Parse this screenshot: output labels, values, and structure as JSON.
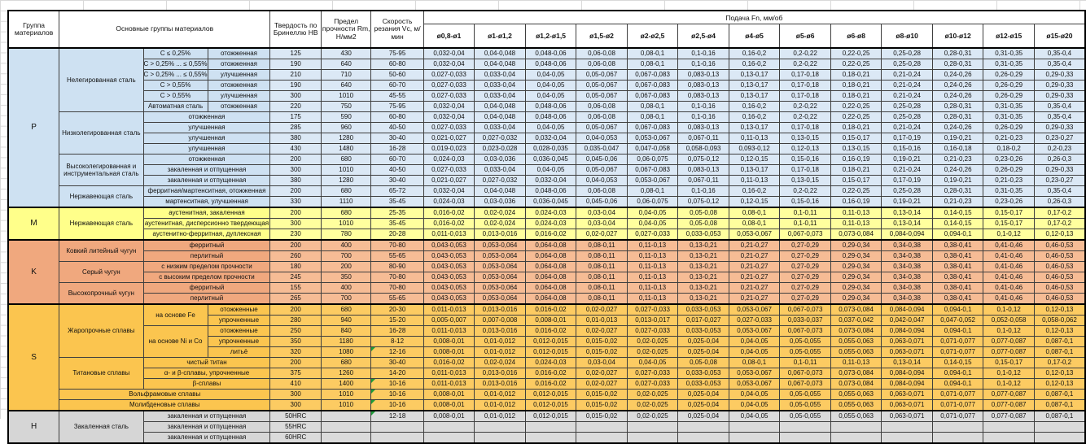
{
  "sheet": {
    "header": {
      "group": "Группа материалов",
      "main": "Основные группы материалов",
      "hardness": "Твердость по Бринеллю НВ",
      "strength": "Предел прочности Rm, Н/мм2",
      "speed": "Скорость резания Vc, м/мин",
      "feed_title": "Подача Fn, мм/об",
      "diameters": [
        "ø0,8-ø1",
        "ø1-ø1,2",
        "ø1,2-ø1,5",
        "ø1,5-ø2",
        "ø2-ø2,5",
        "ø2,5-ø4",
        "ø4-ø5",
        "ø5-ø6",
        "ø6-ø8",
        "ø8-ø10",
        "ø10-ø12",
        "ø12-ø15",
        "ø15-ø20"
      ]
    },
    "section_colors": {
      "P": {
        "left": "#CEE1F2",
        "data": "#DBE8F5"
      },
      "M": {
        "left": "#FFFF8A",
        "data": "#FFFF9E"
      },
      "K": {
        "left": "#F0A87E",
        "data": "#F6BC95"
      },
      "S": {
        "left": "#FBC54F",
        "data": "#FCCB62"
      },
      "H": {
        "left": "#D6D6D6",
        "data": "#DBDBDB"
      }
    },
    "comment_indicator_color": "#1f9d3a",
    "feed_sets": {
      "A": [
        "0,032-0,04",
        "0,04-0,048",
        "0,048-0,06",
        "0,06-0,08",
        "0,08-0,1",
        "0,1-0,16",
        "0,16-0,2",
        "0,2-0,22",
        "0,22-0,25",
        "0,25-0,28",
        "0,28-0,31",
        "0,31-0,35",
        "0,35-0,4"
      ],
      "B": [
        "0,027-0,033",
        "0,033-0,04",
        "0,04-0,05",
        "0,05-0,067",
        "0,067-0,083",
        "0,083-0,13",
        "0,13-0,17",
        "0,17-0,18",
        "0,18-0,21",
        "0,21-0,24",
        "0,24-0,26",
        "0,26-0,29",
        "0,29-0,33"
      ],
      "C": [
        "0,021-0,027",
        "0,027-0,032",
        "0,032-0,04",
        "0,04-0,053",
        "0,053-0,067",
        "0,067-0,11",
        "0,11-0,13",
        "0,13-0,15",
        "0,15-0,17",
        "0,17-0,19",
        "0,19-0,21",
        "0,21-0,23",
        "0,23-0,27"
      ],
      "D": [
        "0,019-0,023",
        "0,023-0,028",
        "0,028-0,035",
        "0,035-0,047",
        "0,047-0,058",
        "0,058-0,093",
        "0,093-0,12",
        "0,12-0,13",
        "0,13-0,15",
        "0,15-0,16",
        "0,16-0,18",
        "0,18-0,2",
        "0,2-0,23"
      ],
      "E": [
        "0,024-0,03",
        "0,03-0,036",
        "0,036-0,045",
        "0,045-0,06",
        "0,06-0,075",
        "0,075-0,12",
        "0,12-0,15",
        "0,15-0,16",
        "0,16-0,19",
        "0,19-0,21",
        "0,21-0,23",
        "0,23-0,26",
        "0,26-0,3"
      ],
      "F": [
        "0,016-0,02",
        "0,02-0,024",
        "0,024-0,03",
        "0,03-0,04",
        "0,04-0,05",
        "0,05-0,08",
        "0,08-0,1",
        "0,1-0,11",
        "0,11-0,13",
        "0,13-0,14",
        "0,14-0,15",
        "0,15-0,17",
        "0,17-0,2"
      ],
      "G": [
        "0,011-0,013",
        "0,013-0,016",
        "0,016-0,02",
        "0,02-0,027",
        "0,027-0,033",
        "0,033-0,053",
        "0,053-0,067",
        "0,067-0,073",
        "0,073-0,084",
        "0,084-0,094",
        "0,094-0,1",
        "0,1-0,12",
        "0,12-0,13"
      ],
      "H": [
        "0,043-0,053",
        "0,053-0,064",
        "0,064-0,08",
        "0,08-0,11",
        "0,11-0,13",
        "0,13-0,21",
        "0,21-0,27",
        "0,27-0,29",
        "0,29-0,34",
        "0,34-0,38",
        "0,38-0,41",
        "0,41-0,46",
        "0,46-0,53"
      ],
      "I": [
        "0,005-0,007",
        "0,007-0,008",
        "0,008-0,01",
        "0,01-0,013",
        "0,013-0,017",
        "0,017-0,027",
        "0,027-0,033",
        "0,033-0,037",
        "0,037-0,042",
        "0,042-0,047",
        "0,047-0,052",
        "0,052-0,058",
        "0,058-0,062"
      ],
      "J": [
        "0,008-0,01",
        "0,01-0,012",
        "0,012-0,015",
        "0,015-0,02",
        "0,02-0,025",
        "0,025-0,04",
        "0,04-0,05",
        "0,05-0,055",
        "0,055-0,063",
        "0,063-0,071",
        "0,071-0,077",
        "0,077-0,087",
        "0,087-0,1"
      ],
      "EMPTY": [
        "",
        "",
        "",
        "",
        "",
        "",
        "",
        "",
        "",
        "",
        "",
        "",
        ""
      ]
    },
    "rows": [
      {
        "s": "P",
        "first": true,
        "left": [
          {
            "t": "P",
            "rs": 15,
            "n": "group-cell"
          },
          {
            "t": "Нелегированная сталь",
            "rs": 6,
            "n": "material-cell"
          },
          {
            "t": "С ≤ 0,25%",
            "n": "subgroup-cell"
          },
          {
            "t": "отожженная",
            "n": "condition-cell"
          }
        ],
        "hb": "125",
        "rm": "430",
        "vc": "75-95",
        "feed": "A"
      },
      {
        "s": "P",
        "left": [
          {
            "t": "С > 0,25% ... ≤ 0,55%",
            "n": "subgroup-cell"
          },
          {
            "t": "отожженная",
            "n": "condition-cell"
          }
        ],
        "hb": "190",
        "rm": "640",
        "vc": "60-80",
        "feed": "A"
      },
      {
        "s": "P",
        "left": [
          {
            "t": "С > 0,25% ... ≤ 0,55%",
            "n": "subgroup-cell"
          },
          {
            "t": "улучшенная",
            "n": "condition-cell"
          }
        ],
        "hb": "210",
        "rm": "710",
        "vc": "50-60",
        "feed": "B"
      },
      {
        "s": "P",
        "left": [
          {
            "t": "С > 0,55%",
            "n": "subgroup-cell"
          },
          {
            "t": "отожженная",
            "n": "condition-cell"
          }
        ],
        "hb": "190",
        "rm": "640",
        "vc": "60-70",
        "feed": "B"
      },
      {
        "s": "P",
        "left": [
          {
            "t": "С > 0,55%",
            "n": "subgroup-cell"
          },
          {
            "t": "улучшенная",
            "n": "condition-cell"
          }
        ],
        "hb": "300",
        "rm": "1010",
        "vc": "45-55",
        "feed": "B"
      },
      {
        "s": "P",
        "left": [
          {
            "t": "Автоматная сталь",
            "n": "subgroup-cell"
          },
          {
            "t": "отожженная",
            "n": "condition-cell"
          }
        ],
        "hb": "220",
        "rm": "750",
        "vc": "75-95",
        "feed": "A"
      },
      {
        "s": "P",
        "left": [
          {
            "t": "Низколегированная сталь",
            "rs": 4,
            "n": "material-cell"
          },
          {
            "t": "отожженная",
            "cs": 2,
            "n": "condition-cell"
          }
        ],
        "hb": "175",
        "rm": "590",
        "vc": "60-80",
        "feed": "A"
      },
      {
        "s": "P",
        "left": [
          {
            "t": "улучшенная",
            "cs": 2,
            "n": "condition-cell"
          }
        ],
        "hb": "285",
        "rm": "960",
        "vc": "40-50",
        "feed": "B"
      },
      {
        "s": "P",
        "left": [
          {
            "t": "улучшенная",
            "cs": 2,
            "n": "condition-cell"
          }
        ],
        "hb": "380",
        "rm": "1280",
        "vc": "30-40",
        "feed": "C"
      },
      {
        "s": "P",
        "left": [
          {
            "t": "улучшенная",
            "cs": 2,
            "n": "condition-cell"
          }
        ],
        "hb": "430",
        "rm": "1480",
        "vc": "16-28",
        "feed": "D"
      },
      {
        "s": "P",
        "left": [
          {
            "t": "Высоколегированная и инструментальная сталь",
            "rs": 3,
            "n": "material-cell"
          },
          {
            "t": "отожженная",
            "cs": 2,
            "n": "condition-cell"
          }
        ],
        "hb": "200",
        "rm": "680",
        "vc": "60-70",
        "feed": "E"
      },
      {
        "s": "P",
        "left": [
          {
            "t": "закаленная и отпущенная",
            "cs": 2,
            "n": "condition-cell"
          }
        ],
        "hb": "300",
        "rm": "1010",
        "vc": "40-50",
        "feed": "B"
      },
      {
        "s": "P",
        "left": [
          {
            "t": "закаленная и отпущенная",
            "cs": 2,
            "n": "condition-cell"
          }
        ],
        "hb": "380",
        "rm": "1280",
        "vc": "30-40",
        "feed": "C"
      },
      {
        "s": "P",
        "left": [
          {
            "t": "Нержавеющая сталь",
            "rs": 2,
            "n": "material-cell"
          },
          {
            "t": "ферритная/мартенситная, отожженная",
            "cs": 2,
            "n": "condition-cell"
          }
        ],
        "hb": "200",
        "rm": "680",
        "vc": "65-72",
        "feed": "A"
      },
      {
        "s": "P",
        "left": [
          {
            "t": "мартенситная, улучшенная",
            "cs": 2,
            "n": "condition-cell"
          }
        ],
        "hb": "330",
        "rm": "1110",
        "vc": "35-45",
        "feed": "E"
      },
      {
        "s": "M",
        "first": true,
        "left": [
          {
            "t": "M",
            "rs": 3,
            "n": "group-cell"
          },
          {
            "t": "Нержавеющая сталь",
            "rs": 3,
            "n": "material-cell"
          },
          {
            "t": "аустенитная, закаленная",
            "cs": 2,
            "n": "condition-cell"
          }
        ],
        "hb": "200",
        "rm": "680",
        "vc": "25-35",
        "feed": "F"
      },
      {
        "s": "M",
        "left": [
          {
            "t": "аустенитная, дисперсионно твердеющая",
            "cs": 2,
            "n": "condition-cell"
          }
        ],
        "hb": "300",
        "rm": "1010",
        "vc": "35-45",
        "feed": "F"
      },
      {
        "s": "M",
        "left": [
          {
            "t": "аустенитно-ферритная, дуплексная",
            "cs": 2,
            "n": "condition-cell"
          }
        ],
        "hb": "230",
        "rm": "780",
        "vc": "20-28",
        "feed": "G"
      },
      {
        "s": "K",
        "first": true,
        "left": [
          {
            "t": "K",
            "rs": 6,
            "n": "group-cell"
          },
          {
            "t": "Ковкий литейный чугун",
            "rs": 2,
            "n": "material-cell"
          },
          {
            "t": "ферритный",
            "cs": 2,
            "n": "condition-cell"
          }
        ],
        "hb": "200",
        "rm": "400",
        "vc": "70-80",
        "feed": "H"
      },
      {
        "s": "K",
        "left": [
          {
            "t": "перлитный",
            "cs": 2,
            "n": "condition-cell"
          }
        ],
        "hb": "260",
        "rm": "700",
        "vc": "55-65",
        "feed": "H"
      },
      {
        "s": "K",
        "left": [
          {
            "t": "Серый чугун",
            "rs": 2,
            "n": "material-cell"
          },
          {
            "t": "с низким пределом прочности",
            "cs": 2,
            "n": "condition-cell"
          }
        ],
        "hb": "180",
        "rm": "200",
        "vc": "80-90",
        "feed": "H"
      },
      {
        "s": "K",
        "left": [
          {
            "t": "с высоким пределом прочности",
            "cs": 2,
            "n": "condition-cell"
          }
        ],
        "hb": "245",
        "rm": "350",
        "vc": "70-80",
        "feed": "H"
      },
      {
        "s": "K",
        "left": [
          {
            "t": "Высокопрочный чугун",
            "rs": 2,
            "n": "material-cell"
          },
          {
            "t": "ферритный",
            "cs": 2,
            "n": "condition-cell"
          }
        ],
        "hb": "155",
        "rm": "400",
        "vc": "70-80",
        "feed": "H"
      },
      {
        "s": "K",
        "left": [
          {
            "t": "перлитный",
            "cs": 2,
            "n": "condition-cell"
          }
        ],
        "hb": "265",
        "rm": "700",
        "vc": "55-65",
        "feed": "H"
      },
      {
        "s": "S",
        "first": true,
        "left": [
          {
            "t": "S",
            "rs": 10,
            "n": "group-cell"
          },
          {
            "t": "Жаропрочные сплавы",
            "rs": 5,
            "n": "material-cell"
          },
          {
            "t": "на основе Fe",
            "rs": 2,
            "n": "subgroup-cell"
          },
          {
            "t": "отожженные",
            "n": "condition-cell"
          }
        ],
        "hb": "200",
        "rm": "680",
        "vc": "20-30",
        "feed": "G"
      },
      {
        "s": "S",
        "left": [
          {
            "t": "упрочненные",
            "n": "condition-cell"
          }
        ],
        "hb": "280",
        "rm": "940",
        "vc": "15-20",
        "feed": "I"
      },
      {
        "s": "S",
        "left": [
          {
            "t": "на основе Ni и Co",
            "rs": 3,
            "n": "subgroup-cell"
          },
          {
            "t": "отожженные",
            "n": "condition-cell"
          }
        ],
        "hb": "250",
        "rm": "840",
        "vc": "16-28",
        "feed": "G"
      },
      {
        "s": "S",
        "left": [
          {
            "t": "упрочненные",
            "n": "condition-cell"
          }
        ],
        "hb": "350",
        "rm": "1180",
        "vc": "8-12",
        "feed": "J"
      },
      {
        "s": "S",
        "left": [
          {
            "t": "литьё",
            "n": "condition-cell"
          }
        ],
        "hb": "320",
        "rm": "1080",
        "vc": "12-16",
        "cm": true,
        "feed": "J"
      },
      {
        "s": "S",
        "left": [
          {
            "t": "Титановые сплавы",
            "rs": 3,
            "n": "material-cell"
          },
          {
            "t": "чистый титан",
            "cs": 2,
            "n": "condition-cell"
          }
        ],
        "hb": "200",
        "rm": "680",
        "vc": "30-40",
        "feed": "F"
      },
      {
        "s": "S",
        "left": [
          {
            "t": "α- и β-сплавы, упрочненные",
            "cs": 2,
            "n": "condition-cell"
          }
        ],
        "hb": "375",
        "rm": "1260",
        "vc": "14-20",
        "feed": "G"
      },
      {
        "s": "S",
        "left": [
          {
            "t": "β-сплавы",
            "cs": 2,
            "n": "condition-cell"
          }
        ],
        "hb": "410",
        "rm": "1400",
        "vc": "10-16",
        "cm": true,
        "feed": "G"
      },
      {
        "s": "S",
        "left": [
          {
            "t": "Вольфрамовые сплавы",
            "cs": 3,
            "n": "material-cell"
          }
        ],
        "hb": "300",
        "rm": "1010",
        "vc": "10-16",
        "cm": true,
        "feed": "J"
      },
      {
        "s": "S",
        "left": [
          {
            "t": "Молибденовые сплавы",
            "cs": 3,
            "n": "material-cell"
          }
        ],
        "hb": "300",
        "rm": "1010",
        "vc": "10-16",
        "cm": true,
        "feed": "J"
      },
      {
        "s": "H",
        "first": true,
        "left": [
          {
            "t": "H",
            "rs": 3,
            "n": "group-cell"
          },
          {
            "t": "Закаленная сталь",
            "rs": 3,
            "n": "material-cell"
          },
          {
            "t": "закаленная и отпущенная",
            "cs": 2,
            "n": "condition-cell"
          }
        ],
        "hb": "50HRC",
        "rm": "",
        "vc": "12-18",
        "cm": true,
        "feed": "J"
      },
      {
        "s": "H",
        "left": [
          {
            "t": "закаленная и отпущенная",
            "cs": 2,
            "n": "condition-cell"
          }
        ],
        "hb": "55HRC",
        "rm": "",
        "vc": "",
        "feed": "EMPTY"
      },
      {
        "s": "H",
        "left": [
          {
            "t": "закаленная и отпущенная",
            "cs": 2,
            "n": "condition-cell"
          }
        ],
        "hb": "60HRC",
        "rm": "",
        "vc": "",
        "feed": "EMPTY"
      }
    ]
  }
}
